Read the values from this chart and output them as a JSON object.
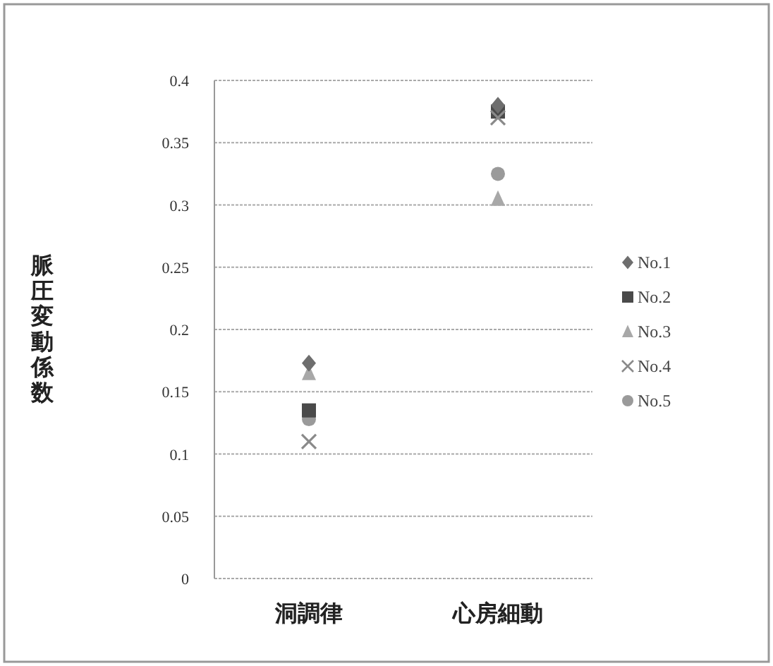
{
  "chart_data": {
    "type": "scatter",
    "ylabel": "脈圧変動係数",
    "categories": [
      "洞調律",
      "心房細動"
    ],
    "ylim": [
      0,
      0.4
    ],
    "yticks": [
      0,
      0.05,
      0.1,
      0.15,
      0.2,
      0.25,
      0.3,
      0.35,
      0.4
    ],
    "grid": "y",
    "legend": "right",
    "series": [
      {
        "name": "No.1",
        "color": "#6e6e6e",
        "marker": "diamond",
        "values": [
          0.173,
          0.38
        ]
      },
      {
        "name": "No.2",
        "color": "#4a4a4a",
        "marker": "square",
        "values": [
          0.135,
          0.375
        ]
      },
      {
        "name": "No.3",
        "color": "#a8a8a8",
        "marker": "triangle",
        "values": [
          0.165,
          0.305
        ]
      },
      {
        "name": "No.4",
        "color": "#8a8a8a",
        "marker": "cross",
        "values": [
          0.11,
          0.37
        ]
      },
      {
        "name": "No.5",
        "color": "#9a9a9a",
        "marker": "circle",
        "values": [
          0.128,
          0.325
        ]
      }
    ]
  }
}
